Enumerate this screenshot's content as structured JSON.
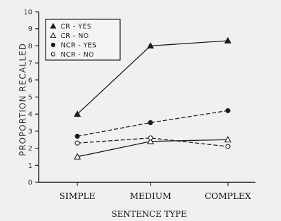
{
  "chart_data": {
    "type": "line",
    "title": "",
    "xlabel": "SENTENCE TYPE",
    "ylabel": "PROPORTION RECALLED",
    "categories": [
      "SIMPLE",
      "MEDIUM",
      "COMPLEX"
    ],
    "ylim": [
      0,
      10
    ],
    "yticks": [
      "0",
      "1",
      "2",
      "3",
      "4",
      "5",
      "6",
      "7",
      "8",
      "9",
      "10"
    ],
    "grid": false,
    "legend_position": "top-left",
    "series": [
      {
        "name": "CR - YES",
        "marker": "filled-triangle",
        "line": "solid",
        "values": [
          4.0,
          8.0,
          8.3
        ]
      },
      {
        "name": "CR - NO",
        "marker": "open-triangle",
        "line": "solid",
        "values": [
          1.5,
          2.4,
          2.5
        ]
      },
      {
        "name": "NCR - YES",
        "marker": "filled-circle",
        "line": "dashed",
        "values": [
          2.7,
          3.5,
          4.2
        ]
      },
      {
        "name": "NCR - NO",
        "marker": "open-circle",
        "line": "dashed",
        "values": [
          2.3,
          2.6,
          2.1
        ]
      }
    ],
    "colors": {
      "ink": "#1a1a1a",
      "background": "#f0f0f0"
    }
  }
}
